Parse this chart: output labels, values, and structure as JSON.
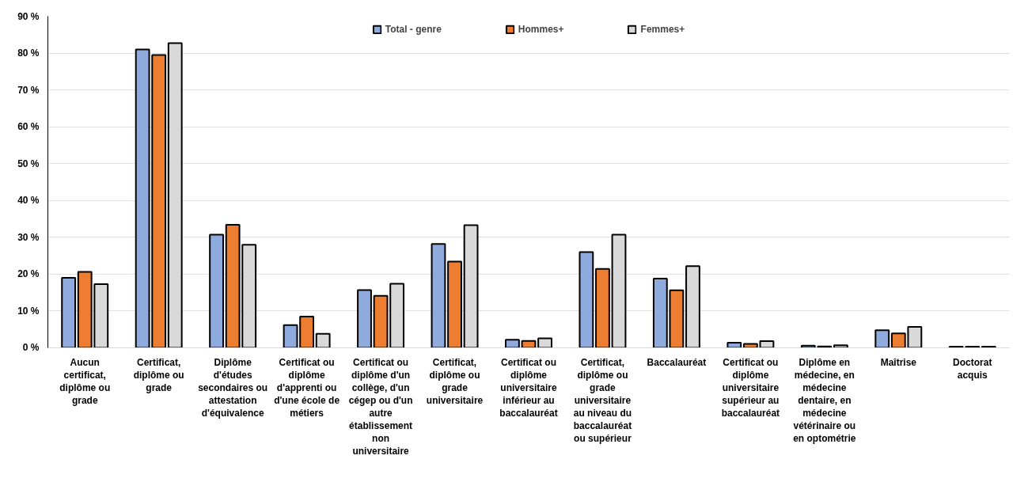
{
  "chart_data": {
    "type": "bar",
    "categories": [
      "Aucun certificat, diplôme ou grade",
      "Certificat, diplôme ou grade",
      "Diplôme d'études secondaires ou attestation d'équivalence",
      "Certificat ou diplôme d'apprenti ou d'une école de métiers",
      "Certificat ou diplôme d'un collège, d'un cégep ou d'un autre établissement non universitaire",
      "Certificat, diplôme ou grade universitaire",
      "Certificat ou diplôme universitaire inférieur au baccalauréat",
      "Certificat, diplôme ou grade universitaire au niveau du baccalauréat ou supérieur",
      "Baccalauréat",
      "Certificat ou diplôme universitaire supérieur au baccalauréat",
      "Diplôme en médecine, en médecine dentaire, en médecine vétérinaire ou en optométrie",
      "Maîtrise",
      "Doctorat acquis"
    ],
    "series": [
      {
        "name": "Total - genre",
        "color": "#8faadc",
        "values": [
          19,
          81,
          30.7,
          6.2,
          15.7,
          28.2,
          2.2,
          26,
          18.8,
          1.4,
          0.6,
          4.8,
          0.3
        ]
      },
      {
        "name": "Hommes+",
        "color": "#ed7d31",
        "values": [
          20.6,
          79.5,
          33.4,
          8.5,
          14.1,
          23.4,
          1.9,
          21.4,
          15.6,
          1.1,
          0.4,
          3.9,
          0.3
        ]
      },
      {
        "name": "Femmes+",
        "color": "#d9d9d9",
        "values": [
          17.3,
          82.7,
          28,
          3.8,
          17.4,
          33.3,
          2.6,
          30.7,
          22.2,
          1.8,
          0.7,
          5.7,
          0.3
        ]
      }
    ],
    "ylim": [
      0,
      90
    ],
    "yticks": [
      {
        "value": 0,
        "label": "0 %"
      },
      {
        "value": 10,
        "label": "10 %"
      },
      {
        "value": 20,
        "label": "20 %"
      },
      {
        "value": 30,
        "label": "30 %"
      },
      {
        "value": 40,
        "label": "40 %"
      },
      {
        "value": 50,
        "label": "50 %"
      },
      {
        "value": 60,
        "label": "60 %"
      },
      {
        "value": 70,
        "label": "70 %"
      },
      {
        "value": 80,
        "label": "80 %"
      },
      {
        "value": 90,
        "label": "90 %"
      }
    ],
    "grid": "y",
    "legend": "top"
  }
}
